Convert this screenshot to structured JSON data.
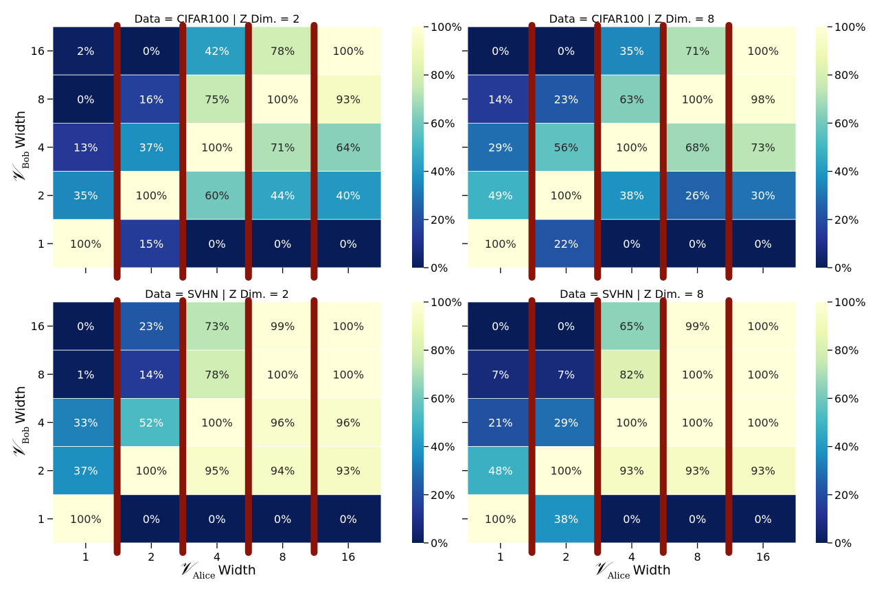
{
  "chart_data": [
    {
      "type": "heatmap",
      "title": "Data = CIFAR100 | Z Dim. = 2",
      "x_categories": [
        "1",
        "2",
        "4",
        "8",
        "16"
      ],
      "y_categories": [
        "16",
        "8",
        "4",
        "2",
        "1"
      ],
      "values": [
        [
          2,
          0,
          42,
          78,
          100
        ],
        [
          0,
          16,
          75,
          100,
          93
        ],
        [
          13,
          37,
          100,
          71,
          64
        ],
        [
          35,
          100,
          60,
          44,
          40
        ],
        [
          100,
          15,
          0,
          0,
          0
        ]
      ],
      "cell_labels": [
        [
          "2%",
          "0%",
          "42%",
          "78%",
          "100%"
        ],
        [
          "0%",
          "16%",
          "75%",
          "100%",
          "93%"
        ],
        [
          "13%",
          "37%",
          "100%",
          "71%",
          "64%"
        ],
        [
          "35%",
          "100%",
          "60%",
          "44%",
          "40%"
        ],
        [
          "100%",
          "15%",
          "0%",
          "0%",
          "0%"
        ]
      ],
      "ylabel": "Width",
      "ylabel_math": "𝒱",
      "ylabel_sub": "Bob",
      "xlabel": "",
      "show_x_ticklabels": false
    },
    {
      "type": "heatmap",
      "title": "Data = CIFAR100 | Z Dim. = 8",
      "x_categories": [
        "1",
        "2",
        "4",
        "8",
        "16"
      ],
      "y_categories": [
        "16",
        "8",
        "4",
        "2",
        "1"
      ],
      "values": [
        [
          0,
          0,
          35,
          71,
          100
        ],
        [
          14,
          23,
          63,
          100,
          98
        ],
        [
          29,
          56,
          100,
          68,
          73
        ],
        [
          49,
          100,
          38,
          26,
          30
        ],
        [
          100,
          22,
          0,
          0,
          0
        ]
      ],
      "cell_labels": [
        [
          "0%",
          "0%",
          "35%",
          "71%",
          "100%"
        ],
        [
          "14%",
          "23%",
          "63%",
          "100%",
          "98%"
        ],
        [
          "29%",
          "56%",
          "100%",
          "68%",
          "73%"
        ],
        [
          "49%",
          "100%",
          "38%",
          "26%",
          "30%"
        ],
        [
          "100%",
          "22%",
          "0%",
          "0%",
          "0%"
        ]
      ],
      "ylabel": "",
      "xlabel": "",
      "show_x_ticklabels": false,
      "show_y_ticklabels": false
    },
    {
      "type": "heatmap",
      "title": "Data = SVHN | Z Dim. = 2",
      "x_categories": [
        "1",
        "2",
        "4",
        "8",
        "16"
      ],
      "y_categories": [
        "16",
        "8",
        "4",
        "2",
        "1"
      ],
      "values": [
        [
          0,
          23,
          73,
          99,
          100
        ],
        [
          1,
          14,
          78,
          100,
          100
        ],
        [
          33,
          52,
          100,
          96,
          96
        ],
        [
          37,
          100,
          95,
          94,
          93
        ],
        [
          100,
          0,
          0,
          0,
          0
        ]
      ],
      "cell_labels": [
        [
          "0%",
          "23%",
          "73%",
          "99%",
          "100%"
        ],
        [
          "1%",
          "14%",
          "78%",
          "100%",
          "100%"
        ],
        [
          "33%",
          "52%",
          "100%",
          "96%",
          "96%"
        ],
        [
          "37%",
          "100%",
          "95%",
          "94%",
          "93%"
        ],
        [
          "100%",
          "0%",
          "0%",
          "0%",
          "0%"
        ]
      ],
      "ylabel": "Width",
      "ylabel_math": "𝒱",
      "ylabel_sub": "Bob",
      "xlabel": "Width",
      "xlabel_math": "𝒱",
      "xlabel_sub": "Alice",
      "show_x_ticklabels": true
    },
    {
      "type": "heatmap",
      "title": "Data = SVHN | Z Dim. = 8",
      "x_categories": [
        "1",
        "2",
        "4",
        "8",
        "16"
      ],
      "y_categories": [
        "16",
        "8",
        "4",
        "2",
        "1"
      ],
      "values": [
        [
          0,
          0,
          65,
          99,
          100
        ],
        [
          7,
          7,
          82,
          100,
          100
        ],
        [
          21,
          29,
          100,
          100,
          100
        ],
        [
          48,
          100,
          93,
          93,
          93
        ],
        [
          100,
          38,
          0,
          0,
          0
        ]
      ],
      "cell_labels": [
        [
          "0%",
          "0%",
          "65%",
          "99%",
          "100%"
        ],
        [
          "7%",
          "7%",
          "82%",
          "100%",
          "100%"
        ],
        [
          "21%",
          "29%",
          "100%",
          "100%",
          "100%"
        ],
        [
          "48%",
          "100%",
          "93%",
          "93%",
          "93%"
        ],
        [
          "100%",
          "38%",
          "0%",
          "0%",
          "0%"
        ]
      ],
      "ylabel": "",
      "xlabel": "Width",
      "xlabel_math": "𝒱",
      "xlabel_sub": "Alice",
      "show_x_ticklabels": true,
      "show_y_ticklabels": false
    }
  ],
  "colorbar": {
    "ticks": [
      0,
      20,
      40,
      60,
      80,
      100
    ],
    "tick_labels": [
      "0%",
      "20%",
      "40%",
      "60%",
      "80%",
      "100%"
    ],
    "range": [
      0,
      100
    ]
  },
  "colors": {
    "colormap": [
      "#081d58",
      "#253494",
      "#225ea8",
      "#1d91c0",
      "#41b6c4",
      "#7fcdbb",
      "#c7e9b4",
      "#edf8b1",
      "#ffffd9"
    ],
    "separator": "#8b1408",
    "light_text": "#ffffff",
    "dark_text": "#262626"
  }
}
